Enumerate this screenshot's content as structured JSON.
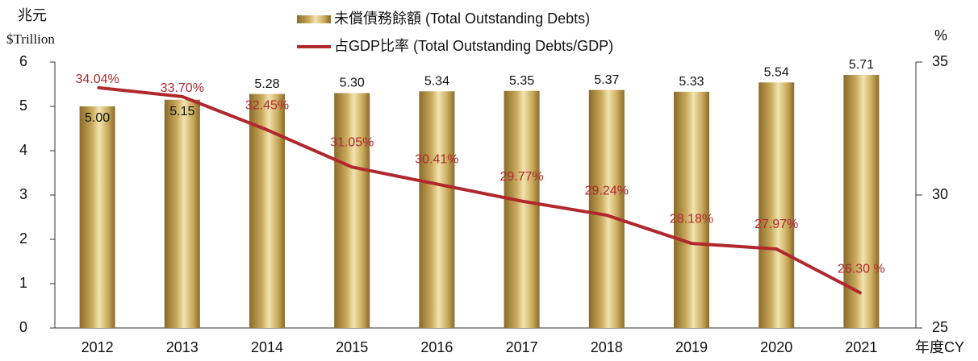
{
  "chart_data": {
    "type": "bar-line",
    "y_label": "兆元",
    "y_unit": "$Trillion",
    "y2_label": "%",
    "x_label": "年度CY",
    "categories": [
      "2012",
      "2013",
      "2014",
      "2015",
      "2016",
      "2017",
      "2018",
      "2019",
      "2020",
      "2021"
    ],
    "series": [
      {
        "name": "未償債務餘額 (Total Outstanding Debts)",
        "type": "bar",
        "color": "#c9aa5c",
        "values": [
          5,
          5.15,
          5.28,
          5.3,
          5.34,
          5.35,
          5.37,
          5.33,
          5.54,
          5.71
        ],
        "value_labels": [
          "5.00",
          "5.15",
          "5.28",
          "5.30",
          "5.34",
          "5.35",
          "5.37",
          "5.33",
          "5.54",
          "5.71"
        ]
      },
      {
        "name": "占GDP比率 (Total Outstanding Debts/GDP)",
        "type": "line",
        "axis": "y2",
        "color": "#b0282d",
        "values": [
          34.04,
          33.7,
          32.45,
          31.05,
          30.41,
          29.77,
          29.24,
          28.18,
          27.97,
          26.3
        ],
        "value_labels": [
          "34.04%",
          "33.70%",
          "32.45%",
          "31.05%",
          "30.41%",
          "29.77%",
          "29.24%",
          "28.18%",
          "27.97%",
          "26.30 %"
        ]
      }
    ],
    "ylim": [
      0,
      6
    ],
    "yticks": [
      0,
      1,
      2,
      3,
      4,
      5,
      6
    ],
    "y2lim": [
      25,
      35
    ],
    "y2ticks": [
      25,
      30,
      35
    ]
  }
}
